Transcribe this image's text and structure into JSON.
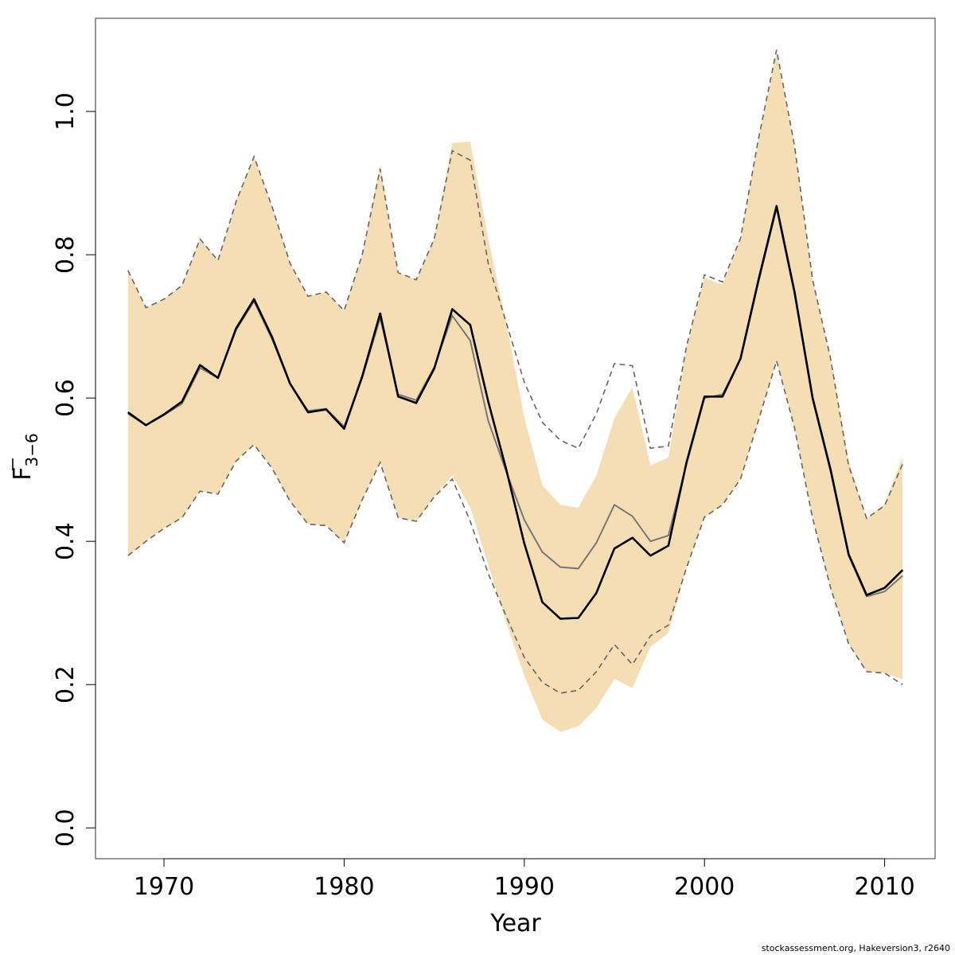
{
  "chart_data": {
    "type": "line",
    "xlabel": "Year",
    "ylabel": {
      "main": "F",
      "subscript": "3−6",
      "overline": true
    },
    "xlim": [
      1966.2,
      2012.8
    ],
    "ylim": [
      -0.043,
      1.13
    ],
    "x_ticks": [
      1970,
      1980,
      1990,
      2000,
      2010
    ],
    "y_ticks": [
      0.0,
      0.2,
      0.4,
      0.6,
      0.8,
      1.0
    ],
    "y_tick_labels": [
      "0.0",
      "0.2",
      "0.4",
      "0.6",
      "0.8",
      "1.0"
    ],
    "x": [
      1968,
      1969,
      1970,
      1971,
      1972,
      1973,
      1974,
      1975,
      1976,
      1977,
      1978,
      1979,
      1980,
      1981,
      1982,
      1983,
      1984,
      1985,
      1986,
      1987,
      1988,
      1989,
      1990,
      1991,
      1992,
      1993,
      1994,
      1995,
      1996,
      1997,
      1998,
      1999,
      2000,
      2001,
      2002,
      2003,
      2004,
      2005,
      2006,
      2007,
      2008,
      2009,
      2010,
      2011
    ],
    "series": [
      {
        "role": "band",
        "color": "#f5deb3",
        "lower": [
          0.38,
          0.4,
          0.418,
          0.433,
          0.47,
          0.466,
          0.512,
          0.535,
          0.502,
          0.456,
          0.424,
          0.422,
          0.398,
          0.458,
          0.51,
          0.433,
          0.428,
          0.462,
          0.492,
          0.447,
          0.367,
          0.286,
          0.212,
          0.151,
          0.134,
          0.142,
          0.167,
          0.208,
          0.195,
          0.253,
          0.272,
          0.363,
          0.434,
          0.451,
          0.487,
          0.569,
          0.652,
          0.558,
          0.432,
          0.335,
          0.257,
          0.218,
          0.216,
          0.207
        ],
        "upper": [
          0.778,
          0.726,
          0.738,
          0.757,
          0.822,
          0.792,
          0.874,
          0.937,
          0.867,
          0.788,
          0.742,
          0.748,
          0.722,
          0.8,
          0.925,
          0.775,
          0.765,
          0.822,
          0.956,
          0.958,
          0.822,
          0.705,
          0.573,
          0.478,
          0.451,
          0.447,
          0.492,
          0.572,
          0.615,
          0.506,
          0.517,
          0.672,
          0.768,
          0.758,
          0.823,
          0.962,
          1.082,
          0.952,
          0.765,
          0.655,
          0.512,
          0.432,
          0.452,
          0.518
        ]
      },
      {
        "role": "dashed-bounds",
        "color": "#666666",
        "lower": [
          0.38,
          0.4,
          0.418,
          0.433,
          0.47,
          0.466,
          0.512,
          0.535,
          0.502,
          0.456,
          0.424,
          0.422,
          0.398,
          0.458,
          0.51,
          0.433,
          0.428,
          0.462,
          0.487,
          0.428,
          0.355,
          0.295,
          0.238,
          0.203,
          0.188,
          0.192,
          0.218,
          0.256,
          0.228,
          0.268,
          0.283,
          0.363,
          0.434,
          0.451,
          0.487,
          0.569,
          0.652,
          0.558,
          0.432,
          0.335,
          0.257,
          0.218,
          0.216,
          0.2
        ],
        "upper": [
          0.778,
          0.726,
          0.738,
          0.757,
          0.822,
          0.792,
          0.874,
          0.937,
          0.867,
          0.788,
          0.742,
          0.748,
          0.722,
          0.8,
          0.92,
          0.775,
          0.765,
          0.822,
          0.945,
          0.932,
          0.788,
          0.705,
          0.622,
          0.566,
          0.541,
          0.53,
          0.578,
          0.648,
          0.645,
          0.53,
          0.533,
          0.672,
          0.772,
          0.762,
          0.823,
          0.962,
          1.086,
          0.952,
          0.765,
          0.655,
          0.506,
          0.432,
          0.45,
          0.508
        ]
      },
      {
        "role": "median",
        "color": "#777777",
        "width": 2,
        "values": [
          0.578,
          0.562,
          0.576,
          0.592,
          0.642,
          0.628,
          0.695,
          0.735,
          0.682,
          0.62,
          0.582,
          0.585,
          0.56,
          0.628,
          0.712,
          0.605,
          0.597,
          0.643,
          0.715,
          0.68,
          0.568,
          0.497,
          0.43,
          0.385,
          0.364,
          0.362,
          0.398,
          0.451,
          0.435,
          0.4,
          0.408,
          0.508,
          0.6,
          0.605,
          0.654,
          0.762,
          0.865,
          0.745,
          0.598,
          0.497,
          0.38,
          0.323,
          0.33,
          0.352
        ]
      },
      {
        "role": "point-estimate",
        "color": "#000000",
        "width": 2.6,
        "values": [
          0.58,
          0.562,
          0.577,
          0.595,
          0.646,
          0.628,
          0.697,
          0.738,
          0.685,
          0.62,
          0.58,
          0.584,
          0.557,
          0.63,
          0.718,
          0.602,
          0.593,
          0.641,
          0.724,
          0.702,
          0.595,
          0.5,
          0.397,
          0.315,
          0.292,
          0.293,
          0.328,
          0.39,
          0.405,
          0.38,
          0.394,
          0.51,
          0.602,
          0.602,
          0.655,
          0.765,
          0.868,
          0.748,
          0.6,
          0.5,
          0.382,
          0.325,
          0.335,
          0.36
        ]
      }
    ]
  },
  "footnote": "stockassessment.org, Hakeversion3, r2640"
}
